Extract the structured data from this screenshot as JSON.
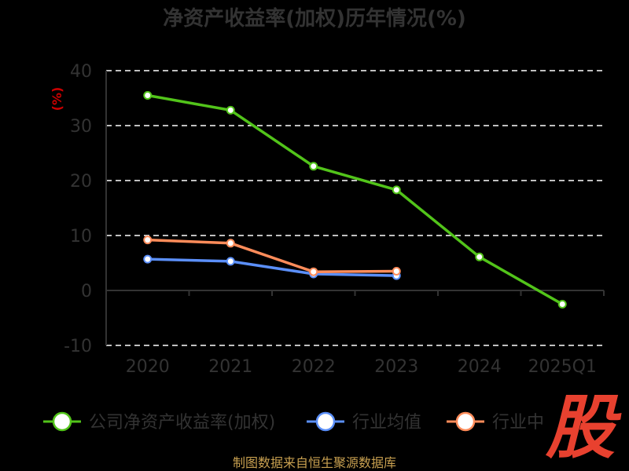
{
  "chart_data": {
    "type": "line",
    "title": "净资产收益率(加权)历年情况(%)",
    "ylabel": "(%)",
    "ylim": [
      -10,
      40
    ],
    "yticks": [
      "40",
      "30",
      "20",
      "10",
      "0",
      "-10"
    ],
    "ytick_values": [
      40,
      30,
      20,
      10,
      0,
      -10
    ],
    "categories": [
      "2020",
      "2021",
      "2022",
      "2023",
      "2024",
      "2025Q1"
    ],
    "grid": true,
    "legend_position": "bottom",
    "series": [
      {
        "name": "公司净资产收益率(加权)",
        "color": "#52c41a",
        "values": [
          35.5,
          32.8,
          22.6,
          18.3,
          6.1,
          -2.5
        ]
      },
      {
        "name": "行业均值",
        "color": "#5b8ff9",
        "values": [
          5.7,
          5.3,
          3.0,
          2.7,
          null,
          null
        ]
      },
      {
        "name": "行业中位数",
        "color": "#ff8c5a",
        "values": [
          9.2,
          8.6,
          3.4,
          3.5,
          null,
          null
        ]
      }
    ],
    "legend_visible": [
      "公司净资产收益率(加权)",
      "行业均值",
      "行业中"
    ]
  },
  "watermark": {
    "text": "股",
    "color": "#e8412f"
  },
  "source": "制图数据来自恒生聚源数据库"
}
